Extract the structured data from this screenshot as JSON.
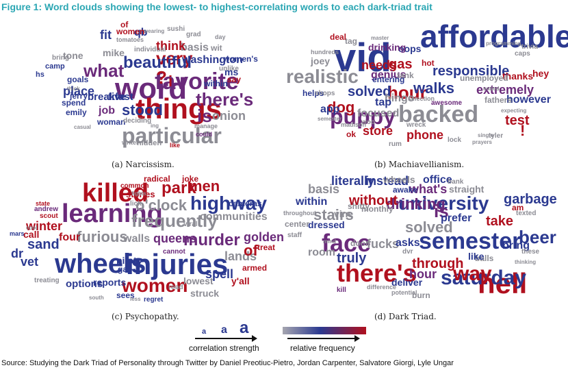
{
  "title": "Figure 1: Word clouds showing the lowest- to highest-correlating words to each dark-triad trait",
  "colors": {
    "title": "#2aa6b3",
    "low": "#a6a6b0",
    "mid": "#2b3990",
    "high": "#b0101e",
    "purple": "#6a2a7a",
    "gray": "#8c8c94"
  },
  "clouds": [
    {
      "id": "narcissism",
      "caption": "(a) Narcissism.",
      "words": [
        {
          "t": "word",
          "c": "purple"
        },
        {
          "t": "things",
          "c": "high"
        },
        {
          "t": "favorite",
          "c": "purple"
        },
        {
          "t": "particular",
          "c": "gray"
        },
        {
          "t": "what",
          "c": "purple"
        },
        {
          "t": "very",
          "c": "high"
        },
        {
          "t": "beautiful",
          "c": "mid"
        },
        {
          "t": "there's",
          "c": "purple"
        },
        {
          "t": "is",
          "c": "purple"
        },
        {
          "t": "stood",
          "c": "mid"
        },
        {
          "t": "washington",
          "c": "mid"
        },
        {
          "t": "basis",
          "c": "gray"
        },
        {
          "t": "think",
          "c": "high"
        },
        {
          "t": "onion",
          "c": "gray"
        },
        {
          "t": "mike",
          "c": "gray"
        },
        {
          "t": "place",
          "c": "mid"
        },
        {
          "t": "breakfast",
          "c": "mid"
        },
        {
          "t": "five",
          "c": "mid"
        },
        {
          "t": "job",
          "c": "purple"
        },
        {
          "t": "fit",
          "c": "mid"
        },
        {
          "t": "qb",
          "c": "mid"
        },
        {
          "t": "women",
          "c": "high"
        },
        {
          "t": "tone",
          "c": "gray"
        },
        {
          "t": "spend",
          "c": "mid"
        },
        {
          "t": "goals",
          "c": "mid"
        },
        {
          "t": "within",
          "c": "mid"
        },
        {
          "t": "ms",
          "c": "mid"
        },
        {
          "t": "say",
          "c": "high"
        },
        {
          "t": "jerry",
          "c": "mid"
        },
        {
          "t": "unlike",
          "c": "gray"
        },
        {
          "t": "woman",
          "c": "mid"
        },
        {
          "t": "deciding",
          "c": "gray"
        },
        {
          "t": "emily",
          "c": "mid"
        },
        {
          "t": "sushi",
          "c": "gray"
        },
        {
          "t": "grad",
          "c": "gray"
        },
        {
          "t": "wit",
          "c": "gray"
        },
        {
          "t": "women's",
          "c": "mid"
        },
        {
          "t": "hidden",
          "c": "gray"
        },
        {
          "t": "writer",
          "c": "gray"
        },
        {
          "t": "like",
          "c": "high"
        },
        {
          "t": "could",
          "c": "purple"
        },
        {
          "t": "manage",
          "c": "gray"
        },
        {
          "t": "wearing",
          "c": "gray"
        },
        {
          "t": "tomatoes",
          "c": "gray"
        },
        {
          "t": "individual",
          "c": "gray"
        },
        {
          "t": "camp",
          "c": "mid"
        },
        {
          "t": "hs",
          "c": "mid"
        },
        {
          "t": "bring",
          "c": "gray"
        },
        {
          "t": "of",
          "c": "high"
        },
        {
          "t": "thick",
          "c": "gray"
        },
        {
          "t": "casual",
          "c": "gray"
        },
        {
          "t": "i",
          "c": "high"
        },
        {
          "t": "day",
          "c": "gray"
        },
        {
          "t": "?",
          "c": "high"
        },
        {
          "t": "ing",
          "c": "gray"
        }
      ]
    },
    {
      "id": "machiavellianism",
      "caption": "(b) Machiavellianism.",
      "words": [
        {
          "t": "affordable",
          "c": "mid"
        },
        {
          "t": "vid",
          "c": "mid"
        },
        {
          "t": "realistic",
          "c": "gray"
        },
        {
          "t": "backed",
          "c": "gray"
        },
        {
          "t": "puppy",
          "c": "purple"
        },
        {
          "t": "hour",
          "c": "high"
        },
        {
          "t": "walks",
          "c": "mid"
        },
        {
          "t": "responsible",
          "c": "mid"
        },
        {
          "t": "extremely",
          "c": "purple"
        },
        {
          "t": "gas",
          "c": "high"
        },
        {
          "t": "needs",
          "c": "high"
        },
        {
          "t": "solved",
          "c": "mid"
        },
        {
          "t": "bingo",
          "c": "gray"
        },
        {
          "t": "dog",
          "c": "high"
        },
        {
          "t": "phone",
          "c": "high"
        },
        {
          "t": "store",
          "c": "high"
        },
        {
          "t": "focused",
          "c": "gray"
        },
        {
          "t": "test",
          "c": "high"
        },
        {
          "t": "however",
          "c": "mid"
        },
        {
          "t": "thanks",
          "c": "high"
        },
        {
          "t": "genius",
          "c": "purple"
        },
        {
          "t": "tank",
          "c": "gray"
        },
        {
          "t": "oops",
          "c": "mid"
        },
        {
          "t": "drinking",
          "c": "purple"
        },
        {
          "t": "entering",
          "c": "mid"
        },
        {
          "t": "hot",
          "c": "high"
        },
        {
          "t": "caps",
          "c": "gray"
        },
        {
          "t": "fathers",
          "c": "gray"
        },
        {
          "t": "unemployed",
          "c": "gray"
        },
        {
          "t": "joey",
          "c": "gray"
        },
        {
          "t": "tag",
          "c": "gray"
        },
        {
          "t": "deal",
          "c": "high"
        },
        {
          "t": "helps",
          "c": "mid"
        },
        {
          "t": "app",
          "c": "mid"
        },
        {
          "t": "shops",
          "c": "gray"
        },
        {
          "t": "ok",
          "c": "high"
        },
        {
          "t": "madison",
          "c": "gray"
        },
        {
          "t": "wreck",
          "c": "gray"
        },
        {
          "t": "lock",
          "c": "gray"
        },
        {
          "t": "tyler",
          "c": "gray"
        },
        {
          "t": "hey",
          "c": "high"
        },
        {
          "t": "!",
          "c": "high"
        },
        {
          "t": "awesome",
          "c": "purple"
        },
        {
          "t": "tap",
          "c": "mid"
        },
        {
          "t": "rum",
          "c": "gray"
        },
        {
          "t": "single",
          "c": "gray"
        },
        {
          "t": "prayers",
          "c": "gray"
        },
        {
          "t": "hundreds",
          "c": "gray"
        },
        {
          "t": "ended",
          "c": "gray"
        },
        {
          "t": "trivia",
          "c": "gray"
        },
        {
          "t": "master",
          "c": "gray"
        },
        {
          "t": "programming",
          "c": "gray"
        },
        {
          "t": "selection",
          "c": "gray"
        },
        {
          "t": "expecting",
          "c": "gray"
        },
        {
          "t": "semester",
          "c": "gray"
        },
        {
          "t": "woo",
          "c": "gray"
        }
      ]
    },
    {
      "id": "psychopathy",
      "caption": "(c) Psychopathy.",
      "words": [
        {
          "t": "injuries",
          "c": "mid"
        },
        {
          "t": "wheels",
          "c": "mid"
        },
        {
          "t": "learning",
          "c": "purple"
        },
        {
          "t": "killed",
          "c": "high"
        },
        {
          "t": "highway",
          "c": "mid"
        },
        {
          "t": "frequently",
          "c": "gray"
        },
        {
          "t": "women",
          "c": "high"
        },
        {
          "t": "park",
          "c": "high"
        },
        {
          "t": "men",
          "c": "high"
        },
        {
          "t": "murder",
          "c": "purple"
        },
        {
          "t": "furious",
          "c": "gray"
        },
        {
          "t": "o'clock",
          "c": "gray"
        },
        {
          "t": "walls",
          "c": "gray"
        },
        {
          "t": "queens",
          "c": "purple"
        },
        {
          "t": "communities",
          "c": "gray"
        },
        {
          "t": "lands",
          "c": "gray"
        },
        {
          "t": "of",
          "c": "high"
        },
        {
          "t": "golden",
          "c": "purple"
        },
        {
          "t": "spell",
          "c": "mid"
        },
        {
          "t": "sand",
          "c": "mid"
        },
        {
          "t": "vet",
          "c": "mid"
        },
        {
          "t": "dr",
          "c": "mid"
        },
        {
          "t": "winter",
          "c": "high"
        },
        {
          "t": "four",
          "c": "high"
        },
        {
          "t": "call",
          "c": "high"
        },
        {
          "t": "options",
          "c": "mid"
        },
        {
          "t": "reports",
          "c": "mid"
        },
        {
          "t": "sees",
          "c": "mid"
        },
        {
          "t": "pilot",
          "c": "mid"
        },
        {
          "t": "gap",
          "c": "mid"
        },
        {
          "t": "lowest",
          "c": "gray"
        },
        {
          "t": "struck",
          "c": "gray"
        },
        {
          "t": "y'all",
          "c": "high"
        },
        {
          "t": "armed",
          "c": "high"
        },
        {
          "t": "treat",
          "c": "high"
        },
        {
          "t": "stories",
          "c": "high"
        },
        {
          "t": "joke",
          "c": "high"
        },
        {
          "t": "radical",
          "c": "high"
        },
        {
          "t": "cameras",
          "c": "mid"
        },
        {
          "t": "viral",
          "c": "gray"
        },
        {
          "t": "cannot",
          "c": "purple"
        },
        {
          "t": "regret",
          "c": "mid"
        },
        {
          "t": "road",
          "c": "gray"
        },
        {
          "t": "treating",
          "c": "gray"
        },
        {
          "t": "state",
          "c": "high"
        },
        {
          "t": "andrew",
          "c": "purple"
        },
        {
          "t": "scout",
          "c": "high"
        },
        {
          "t": "lick",
          "c": "gray"
        },
        {
          "t": "less",
          "c": "gray"
        },
        {
          "t": "south",
          "c": "gray"
        },
        {
          "t": "common",
          "c": "high"
        },
        {
          "t": "mars",
          "c": "mid"
        },
        {
          "t": "fights",
          "c": "gray"
        },
        {
          "t": "cool",
          "c": "gray"
        }
      ]
    },
    {
      "id": "dark-triad",
      "caption": "(d) Dark Triad.",
      "words": [
        {
          "t": "hell",
          "c": "high"
        },
        {
          "t": "semester",
          "c": "mid"
        },
        {
          "t": "there's",
          "c": "high"
        },
        {
          "t": "university",
          "c": "mid"
        },
        {
          "t": "drinking",
          "c": "purple"
        },
        {
          "t": "face",
          "c": "purple"
        },
        {
          "t": "beer",
          "c": "mid"
        },
        {
          "t": "saturday",
          "c": "mid"
        },
        {
          "t": "stairs",
          "c": "gray"
        },
        {
          "t": "way",
          "c": "high"
        },
        {
          "t": "is",
          "c": "purple"
        },
        {
          "t": "garbage",
          "c": "mid"
        },
        {
          "t": "without",
          "c": "high"
        },
        {
          "t": "within",
          "c": "mid"
        },
        {
          "t": "solved",
          "c": "gray"
        },
        {
          "t": "truly",
          "c": "mid"
        },
        {
          "t": "through",
          "c": "high"
        },
        {
          "t": "hour",
          "c": "purple"
        },
        {
          "t": "take",
          "c": "high"
        },
        {
          "t": "bring",
          "c": "mid"
        },
        {
          "t": "fucks",
          "c": "gray"
        },
        {
          "t": "asks",
          "c": "mid"
        },
        {
          "t": "room",
          "c": "gray"
        },
        {
          "t": "dressed",
          "c": "mid"
        },
        {
          "t": "literally",
          "c": "mid"
        },
        {
          "t": "instead",
          "c": "mid"
        },
        {
          "t": "what's",
          "c": "purple"
        },
        {
          "t": "prefer",
          "c": "mid"
        },
        {
          "t": "straight",
          "c": "gray"
        },
        {
          "t": "basis",
          "c": "gray"
        },
        {
          "t": "center",
          "c": "gray"
        },
        {
          "t": "deliver",
          "c": "mid"
        },
        {
          "t": "burn",
          "c": "gray"
        },
        {
          "t": "balls",
          "c": "gray"
        },
        {
          "t": "like",
          "c": "mid"
        },
        {
          "t": "office",
          "c": "mid"
        },
        {
          "t": "awake",
          "c": "mid"
        },
        {
          "t": "wheels",
          "c": "gray"
        },
        {
          "t": "am",
          "c": "high"
        },
        {
          "t": "texted",
          "c": "gray"
        },
        {
          "t": "monthly",
          "c": "gray"
        },
        {
          "t": "shitty",
          "c": "gray"
        },
        {
          "t": "vine",
          "c": "gray"
        },
        {
          "t": "door",
          "c": "gray"
        },
        {
          "t": "mind",
          "c": "gray"
        },
        {
          "t": "dvr",
          "c": "gray"
        },
        {
          "t": "staff",
          "c": "gray"
        },
        {
          "t": "bank",
          "c": "gray"
        },
        {
          "t": "these",
          "c": "gray"
        },
        {
          "t": "thinking",
          "c": "gray"
        },
        {
          "t": "throughout",
          "c": "gray"
        },
        {
          "t": "kill",
          "c": "purple"
        },
        {
          "t": "difference",
          "c": "gray"
        },
        {
          "t": "potential",
          "c": "gray"
        }
      ]
    }
  ],
  "legend": {
    "correlation_label": "correlation strength",
    "frequency_label": "relative frequency",
    "glyph": "a"
  },
  "source": "Source: Studying the Dark Triad of Personality through Twitter by Daniel Preotiuc-Pietro, Jordan Carpenter, Salvatore Giorgi, Lyle Ungar"
}
